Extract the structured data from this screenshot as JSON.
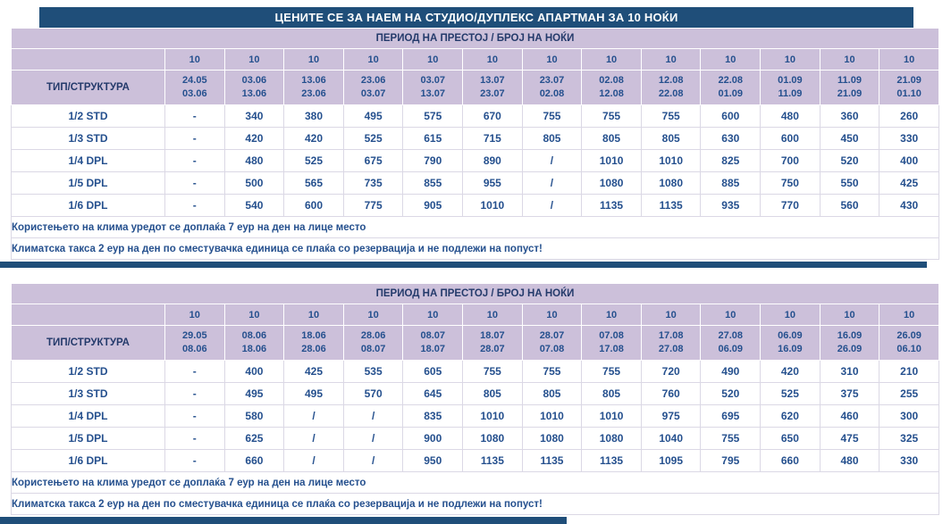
{
  "title": "ЦЕНИТЕ СЕ ЗА НАЕМ НА СТУДИО/ДУПЛЕКС АПАРТМАН ЗА 10 НОЌИ",
  "colors": {
    "title_bar": "#1f4e79",
    "header_bg": "#ccc0da",
    "header_text": "#243a6b",
    "value_text": "#25508e",
    "divider": "#1f4e79"
  },
  "tables": [
    {
      "period_header": "ПЕРИОД НА ПРЕСТОЈ / БРОЈ НА НОЌИ",
      "type_header": "ТИП/СТРУКТУРА",
      "nights": [
        "10",
        "10",
        "10",
        "10",
        "10",
        "10",
        "10",
        "10",
        "10",
        "10",
        "10",
        "10",
        "10"
      ],
      "periods": [
        {
          "from": "24.05",
          "to": "03.06"
        },
        {
          "from": "03.06",
          "to": "13.06"
        },
        {
          "from": "13.06",
          "to": "23.06"
        },
        {
          "from": "23.06",
          "to": "03.07"
        },
        {
          "from": "03.07",
          "to": "13.07"
        },
        {
          "from": "13.07",
          "to": "23.07"
        },
        {
          "from": "23.07",
          "to": "02.08"
        },
        {
          "from": "02.08",
          "to": "12.08"
        },
        {
          "from": "12.08",
          "to": "22.08"
        },
        {
          "from": "22.08",
          "to": "01.09"
        },
        {
          "from": "01.09",
          "to": "11.09"
        },
        {
          "from": "11.09",
          "to": "21.09"
        },
        {
          "from": "21.09",
          "to": "01.10"
        }
      ],
      "rows": [
        {
          "label": "1/2 STD",
          "values": [
            "-",
            "340",
            "380",
            "495",
            "575",
            "670",
            "755",
            "755",
            "755",
            "600",
            "480",
            "360",
            "260"
          ]
        },
        {
          "label": "1/3 STD",
          "values": [
            "-",
            "420",
            "420",
            "525",
            "615",
            "715",
            "805",
            "805",
            "805",
            "630",
            "600",
            "450",
            "330"
          ]
        },
        {
          "label": "1/4 DPL",
          "values": [
            "-",
            "480",
            "525",
            "675",
            "790",
            "890",
            "/",
            "1010",
            "1010",
            "825",
            "700",
            "520",
            "400"
          ]
        },
        {
          "label": "1/5 DPL",
          "values": [
            "-",
            "500",
            "565",
            "735",
            "855",
            "955",
            "/",
            "1080",
            "1080",
            "885",
            "750",
            "550",
            "425"
          ]
        },
        {
          "label": "1/6 DPL",
          "values": [
            "-",
            "540",
            "600",
            "775",
            "905",
            "1010",
            "/",
            "1135",
            "1135",
            "935",
            "770",
            "560",
            "430"
          ]
        }
      ],
      "notes": [
        "Користењето на клима уредот се доплаќа 7 еур на ден на лице место",
        "Климатска такса 2 еур на ден по сместувачка единица се плаќа со резервација и не подлежи на попуст!"
      ]
    },
    {
      "period_header": "ПЕРИОД НА ПРЕСТОЈ / БРОЈ НА НОЌИ",
      "type_header": "ТИП/СТРУКТУРА",
      "nights": [
        "10",
        "10",
        "10",
        "10",
        "10",
        "10",
        "10",
        "10",
        "10",
        "10",
        "10",
        "10",
        "10"
      ],
      "periods": [
        {
          "from": "29.05",
          "to": "08.06"
        },
        {
          "from": "08.06",
          "to": "18.06"
        },
        {
          "from": "18.06",
          "to": "28.06"
        },
        {
          "from": "28.06",
          "to": "08.07"
        },
        {
          "from": "08.07",
          "to": "18.07"
        },
        {
          "from": "18.07",
          "to": "28.07"
        },
        {
          "from": "28.07",
          "to": "07.08"
        },
        {
          "from": "07.08",
          "to": "17.08"
        },
        {
          "from": "17.08",
          "to": "27.08"
        },
        {
          "from": "27.08",
          "to": "06.09"
        },
        {
          "from": "06.09",
          "to": "16.09"
        },
        {
          "from": "16.09",
          "to": "26.09"
        },
        {
          "from": "26.09",
          "to": "06.10"
        }
      ],
      "rows": [
        {
          "label": "1/2 STD",
          "values": [
            "-",
            "400",
            "425",
            "535",
            "605",
            "755",
            "755",
            "755",
            "720",
            "490",
            "420",
            "310",
            "210"
          ]
        },
        {
          "label": "1/3 STD",
          "values": [
            "-",
            "495",
            "495",
            "570",
            "645",
            "805",
            "805",
            "805",
            "760",
            "520",
            "525",
            "375",
            "255"
          ]
        },
        {
          "label": "1/4 DPL",
          "values": [
            "-",
            "580",
            "/",
            "/",
            "835",
            "1010",
            "1010",
            "1010",
            "975",
            "695",
            "620",
            "460",
            "300"
          ]
        },
        {
          "label": "1/5 DPL",
          "values": [
            "-",
            "625",
            "/",
            "/",
            "900",
            "1080",
            "1080",
            "1080",
            "1040",
            "755",
            "650",
            "475",
            "325"
          ]
        },
        {
          "label": "1/6 DPL",
          "values": [
            "-",
            "660",
            "/",
            "/",
            "950",
            "1135",
            "1135",
            "1135",
            "1095",
            "795",
            "660",
            "480",
            "330"
          ]
        }
      ],
      "notes": [
        "Користењето на клима уредот се доплаќа 7 еур на ден на лице место",
        "Климатска такса 2 еур на ден по сместувачка единица се плаќа со резервација и не подлежи на попуст!"
      ]
    }
  ]
}
